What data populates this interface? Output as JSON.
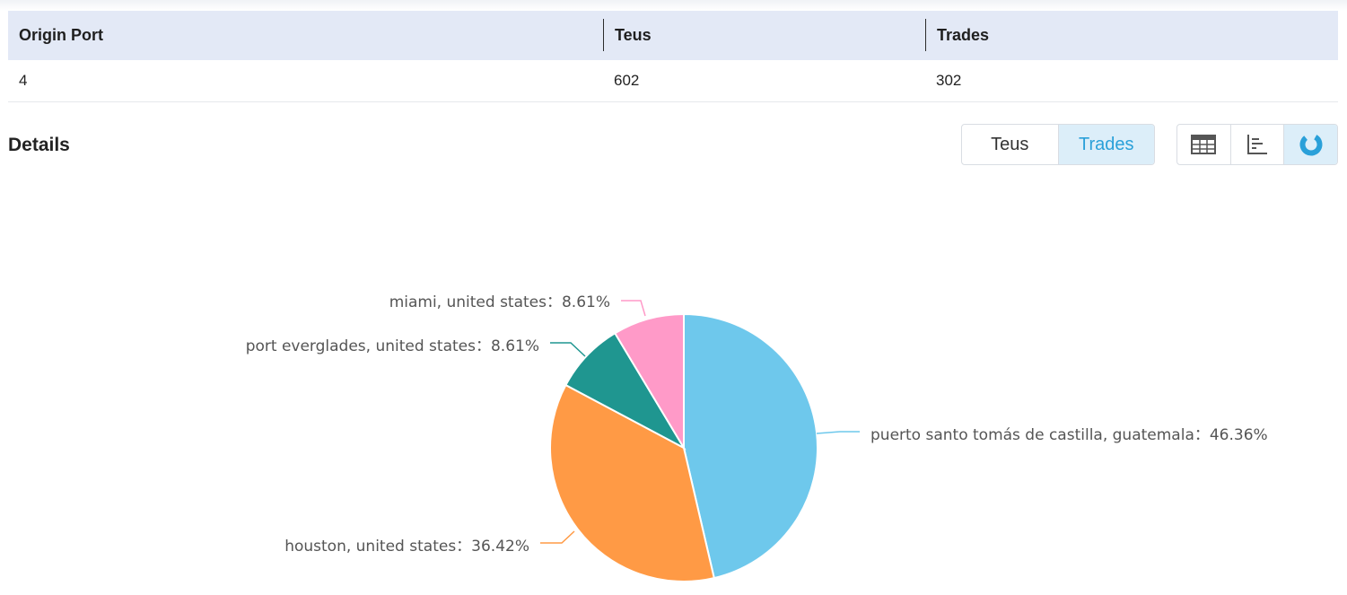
{
  "table": {
    "headers": [
      "Origin Port",
      "Teus",
      "Trades"
    ],
    "row": [
      "4",
      "602",
      "302"
    ]
  },
  "details": {
    "title": "Details",
    "metric_toggle": {
      "options": [
        "Teus",
        "Trades"
      ],
      "selected": "Trades"
    },
    "view_toggle": {
      "options": [
        "table-icon",
        "bar-chart-icon",
        "pie-chart-icon"
      ],
      "selected": "pie-chart-icon"
    }
  },
  "colors": {
    "accent": "#2aa0d9",
    "header_bg": "#e3e9f6",
    "active_bg": "#dceef9"
  },
  "chart_data": {
    "type": "pie",
    "slices": [
      {
        "name": "puerto santo tomás de castilla, guatemala",
        "value": 46.36,
        "label": "puerto santo tomás de castilla, guatemala：46.36%",
        "color": "#6ec8ec"
      },
      {
        "name": "houston, united states",
        "value": 36.42,
        "label": "houston, united states：36.42%",
        "color": "#ff9a45"
      },
      {
        "name": "port everglades, united states",
        "value": 8.61,
        "label": "port everglades, united states：8.61%",
        "color": "#1f9690"
      },
      {
        "name": "miami, united states",
        "value": 8.61,
        "label": "miami, united states：8.61%",
        "color": "#ff9ac8"
      }
    ]
  }
}
